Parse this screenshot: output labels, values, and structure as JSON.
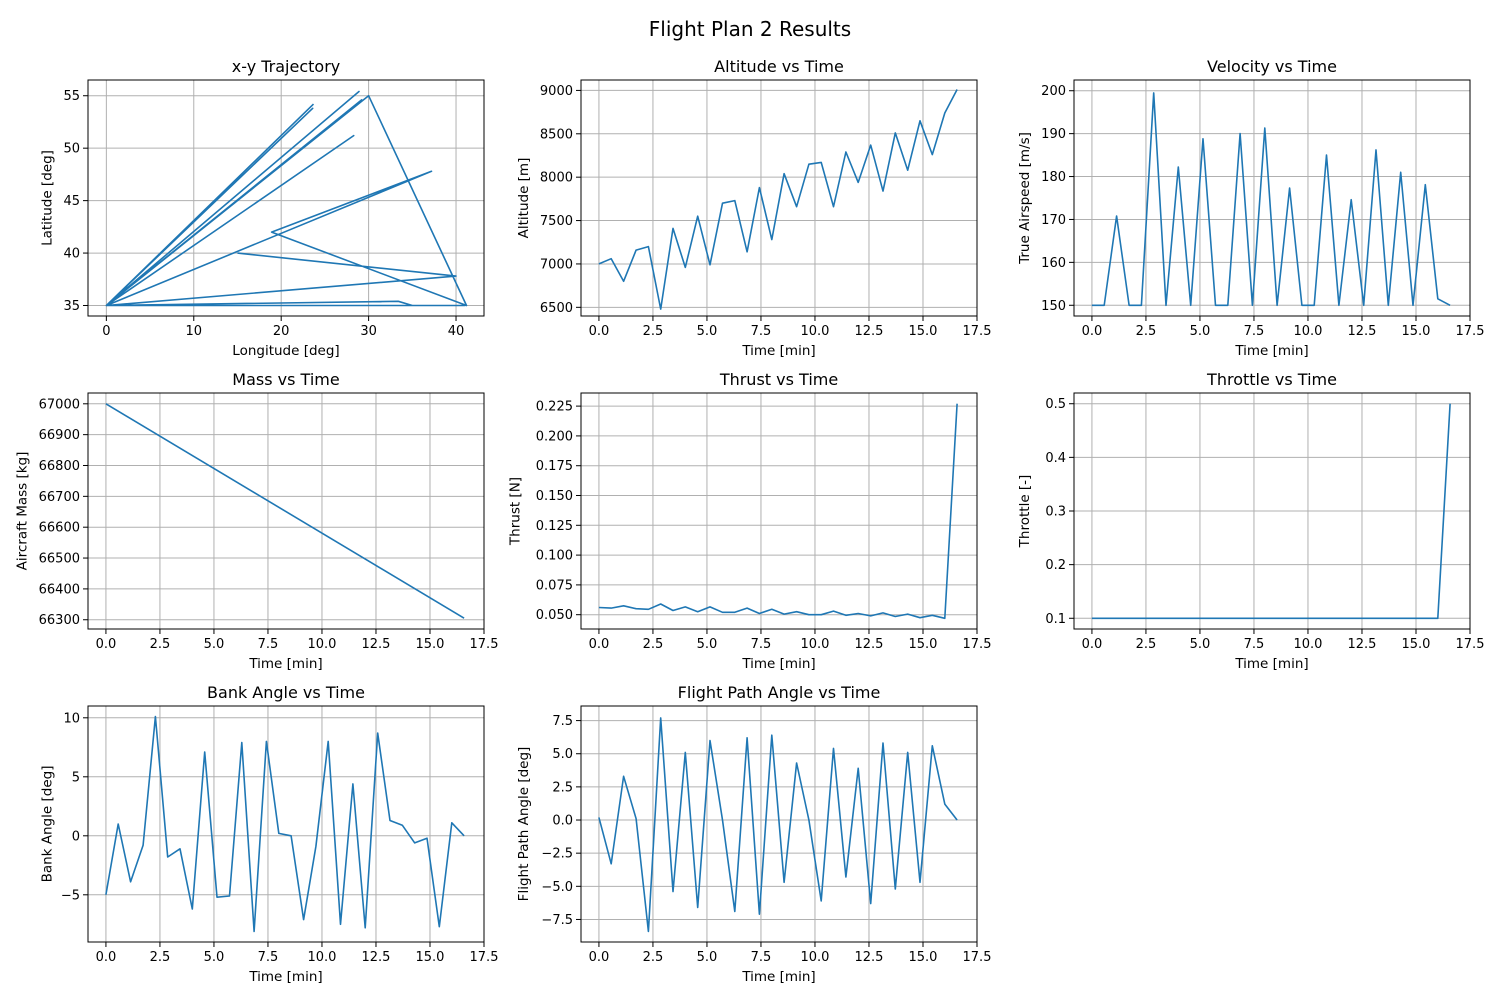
{
  "figure": {
    "title": "Flight Plan 2 Results",
    "line_color": "#1f77b4"
  },
  "chart_data": [
    {
      "id": "xy",
      "type": "line",
      "title": "x-y Trajectory",
      "xlabel": "Longitude [deg]",
      "ylabel": "Latitude [deg]",
      "xlim": [
        -2.1,
        43.2
      ],
      "ylim": [
        34.0,
        56.5
      ],
      "xticks": [
        0,
        10,
        20,
        30,
        40
      ],
      "xtick_labels": [
        "0",
        "10",
        "20",
        "30",
        "40"
      ],
      "yticks": [
        35,
        40,
        45,
        50,
        55
      ],
      "ytick_labels": [
        "35",
        "40",
        "45",
        "50",
        "55"
      ],
      "grid": true,
      "series": [
        {
          "x": [
            15.0,
            40.0,
            0.0,
            41.0,
            0.0,
            33.4,
            35.0,
            0.0,
            37.2,
            18.9,
            41.2,
            30.0,
            0.0,
            28.3,
            0.0,
            29.2,
            0.0,
            28.9,
            0.0,
            23.6,
            0.0,
            23.7
          ],
          "y": [
            40.0,
            37.8,
            35.0,
            35.0,
            35.0,
            35.4,
            35.0,
            35.0,
            47.8,
            42.0,
            35.0,
            55.0,
            35.0,
            51.2,
            35.0,
            54.6,
            35.0,
            55.4,
            35.0,
            53.8,
            35.0,
            54.2
          ]
        }
      ]
    },
    {
      "id": "alt",
      "type": "line",
      "title": "Altitude vs Time",
      "xlabel": "Time [min]",
      "ylabel": "Altitude [m]",
      "xlim": [
        -0.83,
        17.5
      ],
      "ylim": [
        6400,
        9120
      ],
      "xticks": [
        0,
        2.5,
        5,
        7.5,
        10,
        12.5,
        15,
        17.5
      ],
      "xtick_labels": [
        "0.0",
        "2.5",
        "5.0",
        "7.5",
        "10.0",
        "12.5",
        "15.0",
        "17.5"
      ],
      "yticks": [
        6500,
        7000,
        7500,
        8000,
        8500,
        9000
      ],
      "ytick_labels": [
        "6500",
        "7000",
        "7500",
        "8000",
        "8500",
        "9000"
      ],
      "grid": true,
      "series": [
        {
          "x": [
            0.0,
            0.57,
            1.14,
            1.72,
            2.29,
            2.86,
            3.43,
            4.0,
            4.57,
            5.14,
            5.72,
            6.29,
            6.86,
            7.43,
            8.0,
            8.57,
            9.15,
            9.72,
            10.29,
            10.86,
            11.43,
            12.0,
            12.58,
            13.15,
            13.72,
            14.29,
            14.86,
            15.43,
            16.01,
            16.58
          ],
          "y": [
            7000,
            7060,
            6800,
            7160,
            7200,
            6480,
            7410,
            6960,
            7550,
            6990,
            7700,
            7730,
            7140,
            7880,
            7280,
            8040,
            7660,
            8150,
            8170,
            7660,
            8290,
            7940,
            8370,
            7840,
            8510,
            8080,
            8650,
            8260,
            8740,
            9010
          ]
        }
      ]
    },
    {
      "id": "vel",
      "type": "line",
      "title": "Velocity vs Time",
      "xlabel": "Time [min]",
      "ylabel": "True Airspeed [m/s]",
      "xlim": [
        -0.83,
        17.5
      ],
      "ylim": [
        147.5,
        202.5
      ],
      "xticks": [
        0,
        2.5,
        5,
        7.5,
        10,
        12.5,
        15,
        17.5
      ],
      "xtick_labels": [
        "0.0",
        "2.5",
        "5.0",
        "7.5",
        "10.0",
        "12.5",
        "15.0",
        "17.5"
      ],
      "yticks": [
        150,
        160,
        170,
        180,
        190,
        200
      ],
      "ytick_labels": [
        "150",
        "160",
        "170",
        "180",
        "190",
        "200"
      ],
      "grid": true,
      "series": [
        {
          "x": [
            0.0,
            0.57,
            1.14,
            1.72,
            2.29,
            2.86,
            3.43,
            4.0,
            4.57,
            5.14,
            5.72,
            6.29,
            6.86,
            7.43,
            8.0,
            8.57,
            9.15,
            9.72,
            10.29,
            10.86,
            11.43,
            12.0,
            12.58,
            13.15,
            13.72,
            14.29,
            14.86,
            15.43,
            16.01,
            16.58
          ],
          "y": [
            150,
            150,
            170.8,
            150,
            150,
            199.5,
            150,
            182.2,
            150,
            188.8,
            150,
            150,
            190,
            150,
            191.3,
            150,
            177.3,
            150,
            150,
            185,
            150,
            174.6,
            150,
            186.2,
            150,
            181,
            150,
            178.1,
            151.5,
            150
          ]
        }
      ]
    },
    {
      "id": "mass",
      "type": "line",
      "title": "Mass vs Time",
      "xlabel": "Time [min]",
      "ylabel": "Aircraft Mass [kg]",
      "xlim": [
        -0.83,
        17.5
      ],
      "ylim": [
        66270,
        67035
      ],
      "xticks": [
        0,
        2.5,
        5,
        7.5,
        10,
        12.5,
        15,
        17.5
      ],
      "xtick_labels": [
        "0.0",
        "2.5",
        "5.0",
        "7.5",
        "10.0",
        "12.5",
        "15.0",
        "17.5"
      ],
      "yticks": [
        66300,
        66400,
        66500,
        66600,
        66700,
        66800,
        66900,
        67000
      ],
      "ytick_labels": [
        "66300",
        "66400",
        "66500",
        "66600",
        "66700",
        "66800",
        "66900",
        "67000"
      ],
      "grid": true,
      "series": [
        {
          "x": [
            0.0,
            16.58
          ],
          "y": [
            67000,
            66305
          ]
        }
      ]
    },
    {
      "id": "thrust",
      "type": "line",
      "title": "Thrust vs Time",
      "xlabel": "Time [min]",
      "ylabel": "Thrust [N]",
      "xlim": [
        -0.83,
        17.5
      ],
      "ylim": [
        0.038,
        0.236
      ],
      "xticks": [
        0,
        2.5,
        5,
        7.5,
        10,
        12.5,
        15,
        17.5
      ],
      "xtick_labels": [
        "0.0",
        "2.5",
        "5.0",
        "7.5",
        "10.0",
        "12.5",
        "15.0",
        "17.5"
      ],
      "yticks": [
        0.05,
        0.075,
        0.1,
        0.125,
        0.15,
        0.175,
        0.2,
        0.225
      ],
      "ytick_labels": [
        "0.050",
        "0.075",
        "0.100",
        "0.125",
        "0.150",
        "0.175",
        "0.200",
        "0.225"
      ],
      "grid": true,
      "series": [
        {
          "x": [
            0.0,
            0.57,
            1.14,
            1.72,
            2.29,
            2.86,
            3.43,
            4.0,
            4.57,
            5.14,
            5.72,
            6.29,
            6.86,
            7.43,
            8.0,
            8.57,
            9.15,
            9.72,
            10.29,
            10.86,
            11.43,
            12.0,
            12.58,
            13.15,
            13.72,
            14.29,
            14.86,
            15.43,
            16.01,
            16.58
          ],
          "y": [
            0.056,
            0.0555,
            0.0575,
            0.055,
            0.0545,
            0.059,
            0.0535,
            0.0565,
            0.0525,
            0.0565,
            0.052,
            0.052,
            0.0555,
            0.051,
            0.0545,
            0.0505,
            0.0525,
            0.05,
            0.05,
            0.053,
            0.0495,
            0.051,
            0.049,
            0.0515,
            0.0485,
            0.0505,
            0.0475,
            0.0495,
            0.047,
            0.227
          ]
        }
      ]
    },
    {
      "id": "throttle",
      "type": "line",
      "title": "Throttle vs Time",
      "xlabel": "Time [min]",
      "ylabel": "Throttle [-]",
      "xlim": [
        -0.83,
        17.5
      ],
      "ylim": [
        0.08,
        0.52
      ],
      "xticks": [
        0,
        2.5,
        5,
        7.5,
        10,
        12.5,
        15,
        17.5
      ],
      "xtick_labels": [
        "0.0",
        "2.5",
        "5.0",
        "7.5",
        "10.0",
        "12.5",
        "15.0",
        "17.5"
      ],
      "yticks": [
        0.1,
        0.2,
        0.3,
        0.4,
        0.5
      ],
      "ytick_labels": [
        "0.1",
        "0.2",
        "0.3",
        "0.4",
        "0.5"
      ],
      "grid": true,
      "series": [
        {
          "x": [
            0.0,
            16.01,
            16.58
          ],
          "y": [
            0.1,
            0.1,
            0.5
          ]
        }
      ]
    },
    {
      "id": "bank",
      "type": "line",
      "title": "Bank Angle vs Time",
      "xlabel": "Time [min]",
      "ylabel": "Bank Angle [deg]",
      "xlim": [
        -0.83,
        17.5
      ],
      "ylim": [
        -9.0,
        11.0
      ],
      "xticks": [
        0,
        2.5,
        5,
        7.5,
        10,
        12.5,
        15,
        17.5
      ],
      "xtick_labels": [
        "0.0",
        "2.5",
        "5.0",
        "7.5",
        "10.0",
        "12.5",
        "15.0",
        "17.5"
      ],
      "yticks": [
        -5,
        0,
        5,
        10
      ],
      "ytick_labels": [
        "−5",
        "0",
        "5",
        "10"
      ],
      "grid": true,
      "series": [
        {
          "x": [
            0.0,
            0.57,
            1.14,
            1.72,
            2.29,
            2.86,
            3.43,
            4.0,
            4.57,
            5.14,
            5.72,
            6.29,
            6.86,
            7.43,
            8.0,
            8.57,
            9.15,
            9.72,
            10.29,
            10.86,
            11.43,
            12.0,
            12.58,
            13.15,
            13.72,
            14.29,
            14.86,
            15.43,
            16.01,
            16.58
          ],
          "y": [
            -5.0,
            1.0,
            -3.9,
            -0.8,
            10.1,
            -1.8,
            -1.1,
            -6.2,
            7.1,
            -5.2,
            -5.1,
            7.9,
            -8.1,
            8.0,
            0.2,
            0.0,
            -7.1,
            -0.9,
            8.0,
            -7.5,
            4.4,
            -7.8,
            8.7,
            1.3,
            0.9,
            -0.6,
            -0.2,
            -7.7,
            1.1,
            0.0
          ]
        }
      ]
    },
    {
      "id": "fpa",
      "type": "line",
      "title": "Flight Path Angle vs Time",
      "xlabel": "Time [min]",
      "ylabel": "Flight Path Angle [deg]",
      "xlim": [
        -0.83,
        17.5
      ],
      "ylim": [
        -9.2,
        8.6
      ],
      "xticks": [
        0,
        2.5,
        5,
        7.5,
        10,
        12.5,
        15,
        17.5
      ],
      "xtick_labels": [
        "0.0",
        "2.5",
        "5.0",
        "7.5",
        "10.0",
        "12.5",
        "15.0",
        "17.5"
      ],
      "yticks": [
        -7.5,
        -5,
        -2.5,
        0,
        2.5,
        5,
        7.5
      ],
      "ytick_labels": [
        "−7.5",
        "−5.0",
        "−2.5",
        "0.0",
        "2.5",
        "5.0",
        "7.5"
      ],
      "grid": true,
      "series": [
        {
          "x": [
            0.0,
            0.57,
            1.14,
            1.72,
            2.29,
            2.86,
            3.43,
            4.0,
            4.57,
            5.14,
            5.72,
            6.29,
            6.86,
            7.43,
            8.0,
            8.57,
            9.15,
            9.72,
            10.29,
            10.86,
            11.43,
            12.0,
            12.58,
            13.15,
            13.72,
            14.29,
            14.86,
            15.43,
            16.01,
            16.58
          ],
          "y": [
            0.2,
            -3.3,
            3.3,
            0.1,
            -8.4,
            7.7,
            -5.4,
            5.1,
            -6.6,
            6.0,
            0.0,
            -6.9,
            6.2,
            -7.1,
            6.4,
            -4.7,
            4.3,
            0.0,
            -6.1,
            5.4,
            -4.3,
            3.9,
            -6.3,
            5.8,
            -5.2,
            5.1,
            -4.7,
            5.6,
            1.2,
            0.0
          ]
        }
      ]
    }
  ]
}
